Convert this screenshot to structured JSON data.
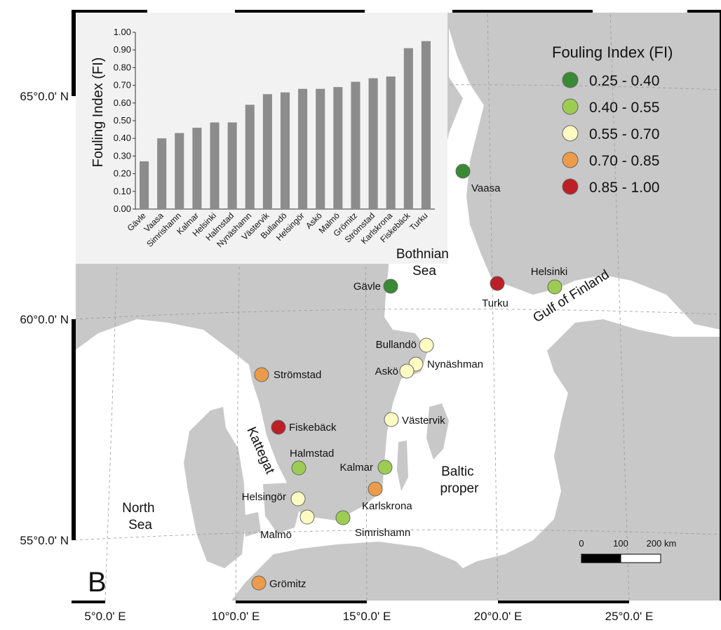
{
  "map": {
    "panel_letter": "B",
    "lat_labels": [
      "65°0.0' N",
      "60°0.0' N",
      "55°0.0' N"
    ],
    "lon_labels": [
      "5°0.0' E",
      "10°0.0' E",
      "15°0.0' E",
      "20°0.0' E",
      "25°0.0' E"
    ],
    "regions": [
      {
        "id": "north-sea",
        "lines": [
          "North",
          "Sea"
        ]
      },
      {
        "id": "kattegat",
        "lines": [
          "Kattegat"
        ]
      },
      {
        "id": "bothnian-sea",
        "lines": [
          "Bothnian",
          "Sea"
        ]
      },
      {
        "id": "gulf-of-finland",
        "lines": [
          "Gulf of Finland"
        ]
      },
      {
        "id": "baltic-proper",
        "lines": [
          "Baltic",
          "proper"
        ]
      }
    ],
    "sites": [
      {
        "name": "Vaasa",
        "fi_class": 0
      },
      {
        "name": "Gävle",
        "fi_class": 0
      },
      {
        "name": "Turku",
        "fi_class": 4
      },
      {
        "name": "Helsinki",
        "fi_class": 1
      },
      {
        "name": "Bullandö",
        "fi_class": 2
      },
      {
        "name": "Nynäshman",
        "fi_class": 2
      },
      {
        "name": "Askö",
        "fi_class": 2
      },
      {
        "name": "Strömstad",
        "fi_class": 3
      },
      {
        "name": "Västervik",
        "fi_class": 2
      },
      {
        "name": "Fiskebäck",
        "fi_class": 4
      },
      {
        "name": "Halmstad",
        "fi_class": 1
      },
      {
        "name": "Kalmar",
        "fi_class": 1
      },
      {
        "name": "Karlskrona",
        "fi_class": 3
      },
      {
        "name": "Helsingör",
        "fi_class": 2
      },
      {
        "name": "Malmö",
        "fi_class": 2
      },
      {
        "name": "Simrishamn",
        "fi_class": 1
      },
      {
        "name": "Grömitz",
        "fi_class": 3
      }
    ],
    "scalebar": {
      "labels": [
        "0",
        "100",
        "200 km"
      ]
    }
  },
  "legend": {
    "title": "Fouling Index (FI)",
    "classes": [
      {
        "range": "0.25 - 0.40",
        "color": "#3a8a35"
      },
      {
        "range": "0.40 - 0.55",
        "color": "#9ccd52"
      },
      {
        "range": "0.55 - 0.70",
        "color": "#fdfbc2"
      },
      {
        "range": "0.70 - 0.85",
        "color": "#ec9b4a"
      },
      {
        "range": "0.85 - 1.00",
        "color": "#bd1f27"
      }
    ]
  },
  "chart_data": {
    "type": "bar",
    "ylabel": "Fouling Index (FI)",
    "ylim": [
      0,
      1.0
    ],
    "yticks": [
      "0.00",
      "0.10",
      "0.20",
      "0.30",
      "0.40",
      "0.50",
      "0.60",
      "0.70",
      "0.80",
      "0.90",
      "1.00"
    ],
    "categories": [
      "Gävle",
      "Vaasa",
      "Simrishamn",
      "Kalmar",
      "Helsinki",
      "Halmstad",
      "Nynäshamn",
      "Västervik",
      "Bullandö",
      "Helsingör",
      "Askö",
      "Malmö",
      "Grömitz",
      "Strömstad",
      "Karlskrona",
      "Fiskebäck",
      "Turku"
    ],
    "values": [
      0.27,
      0.4,
      0.43,
      0.46,
      0.49,
      0.49,
      0.59,
      0.65,
      0.66,
      0.68,
      0.68,
      0.69,
      0.72,
      0.74,
      0.75,
      0.91,
      0.95
    ],
    "bar_color": "#8c8c8c"
  }
}
